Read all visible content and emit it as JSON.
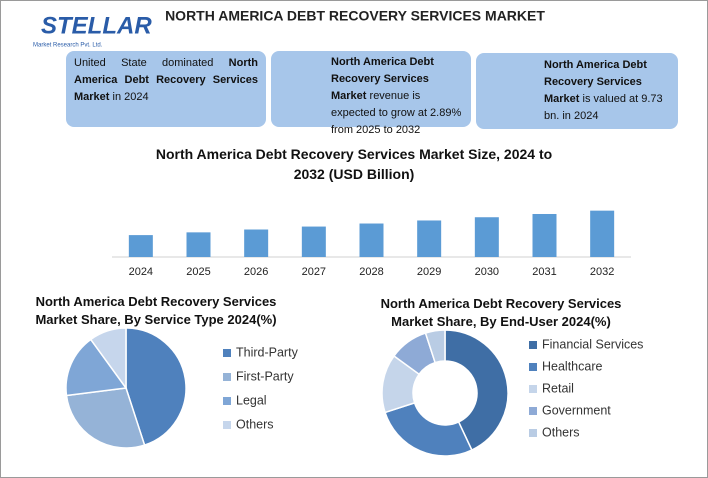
{
  "header": {
    "logo": "STELLAR",
    "logo_tagline": "Market Research Pvt. Ltd.",
    "title": "NORTH AMERICA DEBT RECOVERY SERVICES MARKET"
  },
  "info_boxes": [
    {
      "parts": [
        "United State dominated ",
        "North America Debt Recovery Services Market",
        " in 2024"
      ]
    },
    {
      "parts": [
        "North America Debt Recovery Services Market",
        " revenue is expected to grow at 2.89% from 2025 to 2032"
      ]
    },
    {
      "parts": [
        "North America Debt Recovery Services Market",
        " is valued at 9.73 bn. in 2024"
      ]
    }
  ],
  "chart_data": [
    {
      "type": "bar",
      "title": "North America Debt Recovery Services Market Size, 2024 to 2032 (USD Billion)",
      "categories": [
        "2024",
        "2025",
        "2026",
        "2027",
        "2028",
        "2029",
        "2030",
        "2031",
        "2032"
      ],
      "values": [
        9.73,
        10.01,
        10.3,
        10.6,
        10.91,
        11.22,
        11.55,
        11.88,
        12.22
      ],
      "color": "#5b9bd5",
      "ylim": [
        7.5,
        13
      ]
    },
    {
      "type": "pie",
      "title": "North America Debt Recovery Services Market Share, By Service Type 2024(%)",
      "categories": [
        "Third-Party",
        "First-Party",
        "Legal",
        "Others"
      ],
      "values": [
        45,
        28,
        17,
        10
      ],
      "colors": [
        "#4f81bd",
        "#95b3d7",
        "#7fa6d6",
        "#c6d6ec"
      ]
    },
    {
      "type": "donut",
      "title": "North America Debt Recovery Services Market Share, By End-User 2024(%)",
      "categories": [
        "Financial Services",
        "Healthcare",
        "Retail",
        "Government",
        "Others"
      ],
      "values": [
        43,
        27,
        15,
        10,
        5
      ],
      "colors": [
        "#3f6ea5",
        "#4f81bd",
        "#c5d5ea",
        "#8eaad6",
        "#b9cce4"
      ]
    }
  ]
}
